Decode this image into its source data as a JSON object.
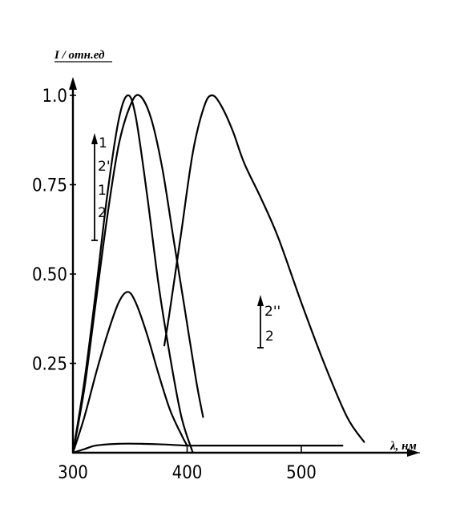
{
  "chart_data": {
    "type": "line",
    "ylabel": "I / отн.ед",
    "xlabel": "λ, нм",
    "xlim": [
      300,
      560
    ],
    "ylim": [
      0,
      1.04
    ],
    "xticks": [
      "300",
      "400",
      "500"
    ],
    "yticks": [
      "0.25",
      "0.50",
      "0.75",
      "1.0"
    ],
    "series": [
      {
        "x": [
          300,
          310,
          320,
          330,
          340,
          348,
          355,
          365,
          375,
          385,
          395,
          405
        ],
        "y": [
          0.0,
          0.2,
          0.45,
          0.72,
          0.93,
          1.0,
          0.94,
          0.72,
          0.47,
          0.27,
          0.1,
          0.0
        ]
      },
      {
        "x": [
          300,
          310,
          320,
          330,
          340,
          350,
          358,
          368,
          378,
          388,
          398,
          408,
          414
        ],
        "y": [
          0.0,
          0.18,
          0.42,
          0.66,
          0.86,
          0.97,
          1.0,
          0.94,
          0.8,
          0.6,
          0.4,
          0.2,
          0.1
        ]
      },
      {
        "x": [
          300,
          310,
          320,
          330,
          340,
          348,
          355,
          365,
          375,
          385,
          395,
          400
        ],
        "y": [
          0.0,
          0.1,
          0.22,
          0.33,
          0.42,
          0.45,
          0.42,
          0.33,
          0.22,
          0.12,
          0.05,
          0.02
        ]
      },
      {
        "x": [
          300,
          310,
          320,
          340,
          360,
          380,
          400,
          420,
          440,
          460,
          480,
          500,
          520,
          536
        ],
        "y": [
          0.0,
          0.01,
          0.02,
          0.025,
          0.025,
          0.023,
          0.02,
          0.02,
          0.02,
          0.02,
          0.02,
          0.02,
          0.02,
          0.02
        ]
      },
      {
        "x": [
          380,
          385,
          395,
          405,
          415,
          422,
          430,
          440,
          450,
          465,
          480,
          500,
          520,
          540,
          555
        ],
        "y": [
          0.3,
          0.4,
          0.62,
          0.84,
          0.97,
          1.0,
          0.97,
          0.9,
          0.81,
          0.71,
          0.6,
          0.42,
          0.25,
          0.1,
          0.03
        ]
      }
    ],
    "annotations": [
      {
        "labels": [
          "1",
          "2'",
          "1'",
          "2"
        ]
      },
      {
        "labels": [
          "2''",
          "2"
        ]
      }
    ]
  }
}
